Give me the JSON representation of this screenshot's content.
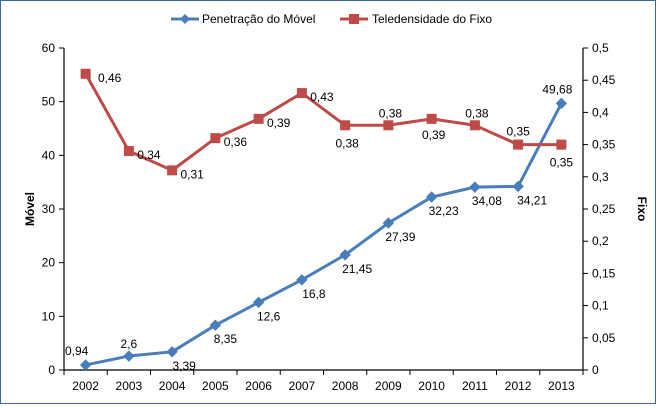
{
  "chart_data": {
    "type": "line",
    "title": "",
    "categories": [
      "2002",
      "2003",
      "2004",
      "2005",
      "2006",
      "2007",
      "2008",
      "2009",
      "2010",
      "2011",
      "2012",
      "2013"
    ],
    "series": [
      {
        "name": "Penetração do Móvel",
        "axis": "left",
        "color": "#4a7ebb",
        "marker": "diamond",
        "values": [
          0.94,
          2.6,
          3.39,
          8.35,
          12.6,
          16.8,
          21.45,
          27.39,
          32.23,
          34.08,
          34.21,
          49.68
        ],
        "labels": [
          "0,94",
          "2,6",
          "3,39",
          "8,35",
          "12,6",
          "16,8",
          "21,45",
          "27,39",
          "32,23",
          "34,08",
          "34,21",
          "49,68"
        ]
      },
      {
        "name": "Teledensidade do Fixo",
        "axis": "right",
        "color": "#be4b48",
        "marker": "square",
        "values": [
          0.46,
          0.34,
          0.31,
          0.36,
          0.39,
          0.43,
          0.38,
          0.38,
          0.39,
          0.38,
          0.35,
          0.35
        ],
        "labels": [
          "0,46",
          "0,34",
          "0,31",
          "0,36",
          "0,39",
          "0,43",
          "0,38",
          "0,38",
          "0,39",
          "0,38",
          "0,35",
          "0,35"
        ]
      }
    ],
    "y_left": {
      "label": "Móvel",
      "ylim": [
        0,
        60
      ],
      "ticks": [
        "0",
        "10",
        "20",
        "30",
        "40",
        "50",
        "60"
      ]
    },
    "y_right": {
      "label": "Fixo",
      "ylim": [
        0,
        0.5
      ],
      "ticks": [
        "0",
        "0,05",
        "0,1",
        "0,15",
        "0,2",
        "0,25",
        "0,3",
        "0,35",
        "0,4",
        "0,45",
        "0,5"
      ]
    },
    "grid": false,
    "legend": "top-center"
  }
}
